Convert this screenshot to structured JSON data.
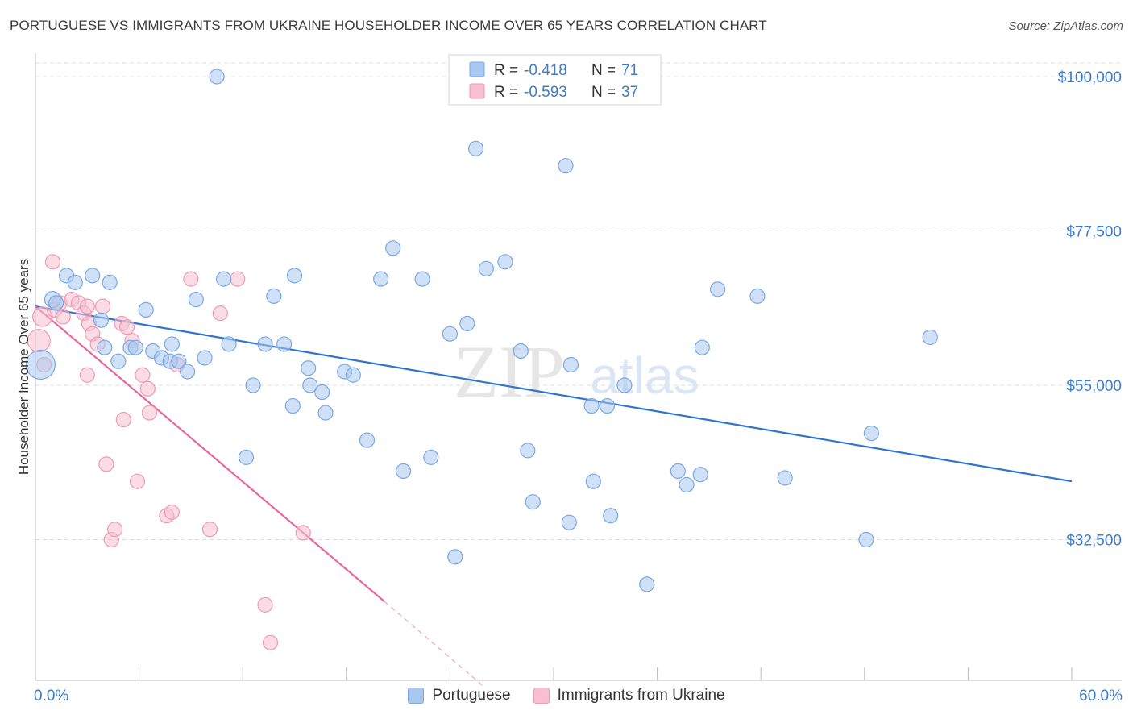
{
  "title": "PORTUGUESE VS IMMIGRANTS FROM UKRAINE HOUSEHOLDER INCOME OVER 65 YEARS CORRELATION CHART",
  "source": "Source: ZipAtlas.com",
  "watermark": {
    "zip": "ZIP",
    "atlas": "atlas"
  },
  "colors": {
    "blue_fill": "#a9c8f0",
    "blue_stroke": "#7aa8e0",
    "blue_line": "#2f74d0",
    "pink_fill": "#f7bfd0",
    "pink_stroke": "#ec9ab5",
    "pink_line": "#e8679a",
    "tick_text": "#3d7cc9",
    "grid": "#dcdcdc"
  },
  "legend_top": {
    "rows": [
      {
        "r_label": "R =",
        "r_value": "-0.418",
        "n_label": "N =",
        "n_value": "71",
        "color": "blue"
      },
      {
        "r_label": "R =",
        "r_value": "-0.593",
        "n_label": "N =",
        "n_value": "37",
        "color": "pink"
      }
    ]
  },
  "legend_bottom": [
    {
      "label": "Portuguese",
      "color": "blue"
    },
    {
      "label": "Immigrants from Ukraine",
      "color": "pink"
    }
  ],
  "chart_data": {
    "type": "scatter",
    "title": "PORTUGUESE VS IMMIGRANTS FROM UKRAINE HOUSEHOLDER INCOME OVER 65 YEARS CORRELATION CHART",
    "xlabel": "",
    "ylabel": "Householder Income Over 65 years",
    "xlim": [
      0,
      60
    ],
    "ylim": [
      12000,
      102000
    ],
    "x_tick_labels": [
      "0.0%",
      "60.0%"
    ],
    "y_ticks": [
      32500,
      55000,
      77500,
      100000
    ],
    "y_tick_labels": [
      "$32,500",
      "$55,000",
      "$77,500",
      "$100,000"
    ],
    "grid": true,
    "legend_position": "top-center",
    "series": [
      {
        "name": "Portuguese",
        "color": "blue",
        "trend": {
          "x": [
            0,
            60
          ],
          "y": [
            66500,
            41000
          ]
        },
        "points": [
          [
            0.3,
            58000,
            18
          ],
          [
            1.0,
            67500,
            10
          ],
          [
            1.2,
            67000,
            9
          ],
          [
            1.8,
            71000,
            9
          ],
          [
            2.3,
            70000,
            9
          ],
          [
            3.3,
            71000,
            9
          ],
          [
            3.8,
            64500,
            9
          ],
          [
            4.0,
            60500,
            9
          ],
          [
            4.3,
            70000,
            9
          ],
          [
            4.8,
            58500,
            9
          ],
          [
            5.5,
            60500,
            9
          ],
          [
            5.8,
            60500,
            9
          ],
          [
            6.4,
            66000,
            9
          ],
          [
            6.8,
            60000,
            9
          ],
          [
            7.3,
            59000,
            9
          ],
          [
            7.8,
            58500,
            9
          ],
          [
            7.9,
            61000,
            9
          ],
          [
            8.3,
            58500,
            9
          ],
          [
            8.8,
            57000,
            9
          ],
          [
            9.3,
            67500,
            9
          ],
          [
            9.8,
            59000,
            9
          ],
          [
            10.5,
            100000,
            9
          ],
          [
            10.9,
            70500,
            9
          ],
          [
            11.2,
            61000,
            9
          ],
          [
            12.2,
            44500,
            9
          ],
          [
            12.6,
            55000,
            9
          ],
          [
            13.3,
            61000,
            9
          ],
          [
            13.8,
            68000,
            9
          ],
          [
            14.4,
            61000,
            9
          ],
          [
            14.9,
            52000,
            9
          ],
          [
            15.0,
            71000,
            9
          ],
          [
            15.8,
            57500,
            9
          ],
          [
            15.9,
            55000,
            9
          ],
          [
            16.6,
            54000,
            9
          ],
          [
            16.8,
            51000,
            9
          ],
          [
            17.9,
            57000,
            9
          ],
          [
            18.4,
            56500,
            9
          ],
          [
            19.2,
            47000,
            9
          ],
          [
            20.0,
            70500,
            9
          ],
          [
            20.7,
            75000,
            9
          ],
          [
            21.3,
            42500,
            9
          ],
          [
            22.4,
            70500,
            9
          ],
          [
            22.9,
            44500,
            9
          ],
          [
            24.0,
            62500,
            9
          ],
          [
            24.3,
            30000,
            9
          ],
          [
            25.0,
            64000,
            9
          ],
          [
            25.5,
            89500,
            9
          ],
          [
            26.1,
            72000,
            9
          ],
          [
            27.2,
            73000,
            9
          ],
          [
            28.1,
            60000,
            9
          ],
          [
            28.5,
            45500,
            9
          ],
          [
            28.8,
            38000,
            9
          ],
          [
            30.7,
            87000,
            9
          ],
          [
            30.9,
            35000,
            9
          ],
          [
            31.0,
            58000,
            9
          ],
          [
            32.2,
            52000,
            9
          ],
          [
            32.3,
            41000,
            9
          ],
          [
            33.1,
            52000,
            9
          ],
          [
            33.3,
            36000,
            9
          ],
          [
            34.1,
            55000,
            9
          ],
          [
            35.4,
            26000,
            9
          ],
          [
            37.2,
            42500,
            9
          ],
          [
            37.7,
            40500,
            9
          ],
          [
            38.5,
            42000,
            9
          ],
          [
            38.6,
            60500,
            9
          ],
          [
            39.5,
            69000,
            9
          ],
          [
            41.8,
            68000,
            9
          ],
          [
            43.4,
            41500,
            9
          ],
          [
            48.1,
            32500,
            9
          ],
          [
            48.4,
            48000,
            9
          ],
          [
            51.8,
            62000,
            9
          ]
        ]
      },
      {
        "name": "Immigrants from Ukraine",
        "color": "pink",
        "trend": {
          "x": [
            0,
            20.2
          ],
          "y": [
            66500,
            23500
          ]
        },
        "trend_dashed": {
          "x": [
            20.2,
            26
          ],
          "y": [
            23500,
            11000
          ]
        },
        "points": [
          [
            0.2,
            61500,
            14
          ],
          [
            0.4,
            65000,
            12
          ],
          [
            0.5,
            58000,
            9
          ],
          [
            1.0,
            73000,
            9
          ],
          [
            1.1,
            66000,
            9
          ],
          [
            1.4,
            67000,
            9
          ],
          [
            1.6,
            65000,
            9
          ],
          [
            2.1,
            67500,
            9
          ],
          [
            2.5,
            67000,
            9
          ],
          [
            2.8,
            65500,
            9
          ],
          [
            3.0,
            66500,
            9
          ],
          [
            3.0,
            56500,
            9
          ],
          [
            3.1,
            64000,
            9
          ],
          [
            3.3,
            62500,
            9
          ],
          [
            3.6,
            61000,
            9
          ],
          [
            3.9,
            66500,
            9
          ],
          [
            4.1,
            43500,
            9
          ],
          [
            4.4,
            32500,
            9
          ],
          [
            4.6,
            34000,
            9
          ],
          [
            5.0,
            64000,
            9
          ],
          [
            5.1,
            50000,
            9
          ],
          [
            5.3,
            63500,
            9
          ],
          [
            5.6,
            61500,
            9
          ],
          [
            5.9,
            41000,
            9
          ],
          [
            6.2,
            56500,
            9
          ],
          [
            6.5,
            54500,
            9
          ],
          [
            6.6,
            51000,
            9
          ],
          [
            7.6,
            36000,
            9
          ],
          [
            7.9,
            36500,
            9
          ],
          [
            8.2,
            58000,
            9
          ],
          [
            9.0,
            70500,
            9
          ],
          [
            10.1,
            34000,
            9
          ],
          [
            10.7,
            65500,
            9
          ],
          [
            11.7,
            70500,
            9
          ],
          [
            13.3,
            23000,
            9
          ],
          [
            13.6,
            17500,
            9
          ],
          [
            15.5,
            33500,
            9
          ]
        ]
      }
    ]
  },
  "y_axis_label": "Householder Income Over 65 years"
}
